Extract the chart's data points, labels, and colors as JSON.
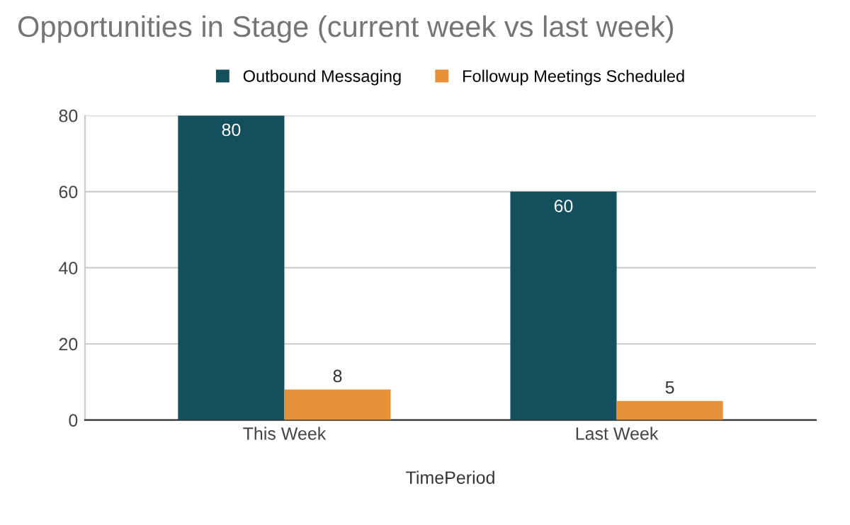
{
  "chart_data": {
    "type": "bar",
    "title": "Opportunities in Stage (current week vs last week)",
    "xlabel": "TimePeriod",
    "categories": [
      "This Week",
      "Last Week"
    ],
    "series": [
      {
        "name": "Outbound Messaging",
        "color": "#134f5c",
        "values": [
          80,
          60
        ]
      },
      {
        "name": "Followup Meetings Scheduled",
        "color": "#e69138",
        "values": [
          8,
          5
        ]
      }
    ],
    "ylim": [
      0,
      80
    ],
    "yticks": [
      0,
      20,
      40,
      60,
      80
    ],
    "grid": "y",
    "legend": "top",
    "data_labels": true
  }
}
